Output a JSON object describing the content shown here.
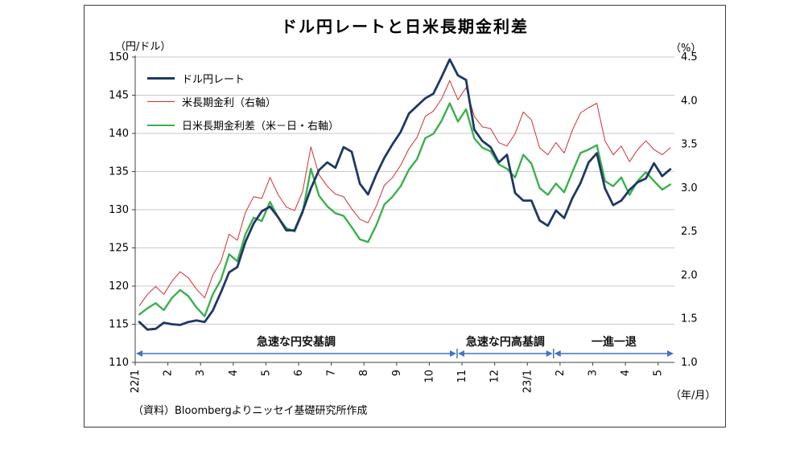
{
  "title": "ドル円レートと日米長期金利差",
  "left_axis_unit": "（円/ドル）",
  "right_axis_unit": "（%）",
  "x_axis_unit": "（年/月）",
  "source": "（資料）Bloombergよりニッセイ基礎研究所作成",
  "chart_data": {
    "type": "line",
    "title": "ドル円レートと日米長期金利差",
    "x_tick_labels": [
      "22/1",
      "2",
      "3",
      "4",
      "5",
      "6",
      "7",
      "8",
      "9",
      "10",
      "11",
      "12",
      "23/1",
      "2",
      "3",
      "4",
      "5"
    ],
    "points_per_month": 4,
    "months_span": 16.5,
    "grid": true,
    "legend_position": "top-left-inside",
    "left_axis": {
      "label": "（円/ドル）",
      "min": 110,
      "max": 150,
      "ticks": [
        110,
        115,
        120,
        125,
        130,
        135,
        140,
        145,
        150
      ]
    },
    "right_axis": {
      "label": "（%）",
      "min": 1.0,
      "max": 4.5,
      "ticks": [
        1.0,
        1.5,
        2.0,
        2.5,
        3.0,
        3.5,
        4.0,
        4.5
      ]
    },
    "annotation_color": "#4472c4",
    "annotation_bars": [
      9.85,
      12.8
    ],
    "annotations": [
      {
        "label": "急速な円安基調",
        "from": 0,
        "to": 9.85
      },
      {
        "label": "急速な円高基調",
        "from": 9.85,
        "to": 12.8
      },
      {
        "label": "一進一退",
        "from": 12.8,
        "to": 16.5
      }
    ],
    "series": [
      {
        "id": "usdjpy",
        "name": "ドル円レート",
        "axis": "left",
        "color": "#1f3864",
        "width": 2.8,
        "values": [
          115.3,
          114.3,
          114.4,
          115.2,
          115.0,
          114.9,
          115.3,
          115.5,
          115.3,
          116.8,
          119.2,
          121.8,
          122.5,
          125.8,
          128.2,
          129.8,
          130.4,
          129.0,
          127.3,
          127.3,
          129.8,
          132.8,
          135.2,
          136.2,
          135.5,
          138.2,
          137.6,
          133.4,
          132.0,
          134.6,
          136.8,
          138.6,
          140.2,
          142.6,
          143.6,
          144.6,
          145.2,
          147.4,
          149.7,
          147.6,
          147.0,
          140.5,
          139.0,
          138.2,
          136.2,
          137.2,
          132.2,
          131.2,
          131.2,
          128.6,
          127.9,
          129.9,
          128.9,
          131.5,
          133.5,
          136.2,
          137.4,
          132.8,
          130.6,
          131.2,
          132.6,
          133.6,
          134.1,
          136.1,
          134.4,
          135.3
        ]
      },
      {
        "id": "us10y",
        "name": "米長期金利（右軸）",
        "axis": "right",
        "color": "#d23030",
        "width": 1,
        "values": [
          1.65,
          1.78,
          1.87,
          1.78,
          1.93,
          2.04,
          1.97,
          1.84,
          1.74,
          2.0,
          2.16,
          2.47,
          2.4,
          2.72,
          2.9,
          2.88,
          3.12,
          2.92,
          2.78,
          2.74,
          2.96,
          3.47,
          3.15,
          3.02,
          2.93,
          2.9,
          2.76,
          2.64,
          2.6,
          2.79,
          3.03,
          3.12,
          3.26,
          3.45,
          3.58,
          3.82,
          3.88,
          4.02,
          4.23,
          4.01,
          4.15,
          3.82,
          3.7,
          3.68,
          3.52,
          3.48,
          3.62,
          3.87,
          3.78,
          3.46,
          3.38,
          3.52,
          3.4,
          3.66,
          3.86,
          3.92,
          3.97,
          3.54,
          3.38,
          3.48,
          3.3,
          3.44,
          3.54,
          3.44,
          3.38,
          3.46
        ]
      },
      {
        "id": "spread",
        "name": "日米長期金利差（米－日・右軸）",
        "axis": "right",
        "color": "#3cb04e",
        "width": 2.4,
        "values": [
          1.55,
          1.62,
          1.68,
          1.6,
          1.74,
          1.83,
          1.76,
          1.63,
          1.53,
          1.78,
          1.95,
          2.24,
          2.16,
          2.47,
          2.66,
          2.62,
          2.84,
          2.66,
          2.54,
          2.5,
          2.72,
          3.22,
          2.91,
          2.79,
          2.71,
          2.68,
          2.55,
          2.41,
          2.38,
          2.57,
          2.81,
          2.9,
          3.02,
          3.21,
          3.33,
          3.57,
          3.62,
          3.77,
          3.97,
          3.76,
          3.9,
          3.57,
          3.46,
          3.42,
          3.27,
          3.22,
          3.12,
          3.38,
          3.28,
          3.0,
          2.92,
          3.05,
          2.95,
          3.18,
          3.4,
          3.44,
          3.49,
          3.08,
          3.02,
          3.12,
          2.92,
          3.08,
          3.18,
          3.08,
          2.98,
          3.04
        ]
      }
    ]
  }
}
